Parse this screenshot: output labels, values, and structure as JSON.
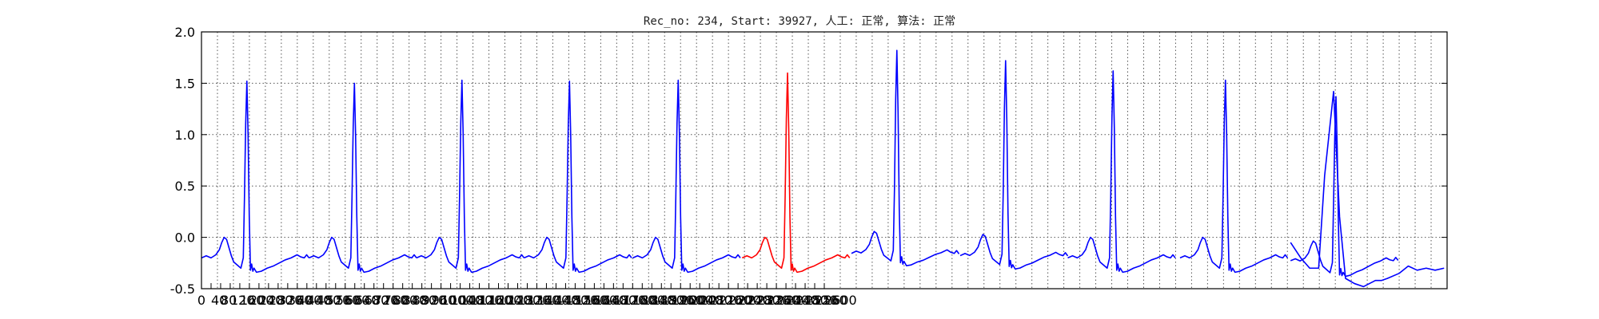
{
  "chart_data": {
    "type": "line",
    "title": "Rec_no: 234, Start: 39927, 人工: 正常, 算法: 正常",
    "xlabel": "",
    "ylabel": "",
    "ylim": [
      -0.5,
      2.0
    ],
    "xlim": [
      0,
      1560
    ],
    "x_grid_step": 20,
    "grid": true,
    "y_ticks": [
      "-0.5",
      "0.0",
      "0.5",
      "1.0",
      "1.5",
      "2.0"
    ],
    "x_tick_labels": [
      "0",
      "40",
      "80",
      "120",
      "160",
      "200",
      "240",
      "280",
      "320",
      "360",
      "400",
      "440",
      "480",
      "520",
      "560",
      "600",
      "640",
      "680",
      "720",
      "760",
      "800",
      "840",
      "880",
      "920",
      "960",
      "1000",
      "1040",
      "1080",
      "1120",
      "1160",
      "1200",
      "1240",
      "1280",
      "1320",
      "1360",
      "1400",
      "1440",
      "1480",
      "1520",
      "1560",
      "1600",
      "1640",
      "1680",
      "1720",
      "1760",
      "1800",
      "1840",
      "1880",
      "1920",
      "1960",
      "2000",
      "2040",
      "2080",
      "2120",
      "2160",
      "2200",
      "2240",
      "2280",
      "2320",
      "2360",
      "2400",
      "2440",
      "2480",
      "2520",
      "2560",
      "2600"
    ],
    "series_colors": {
      "normal": "#0000ff",
      "highlight": "#ff0000"
    },
    "beat": {
      "t": [
        0,
        8,
        16,
        24,
        30,
        34,
        38,
        42,
        46,
        50,
        54,
        60,
        66,
        70,
        72,
        74,
        76,
        78,
        80,
        82,
        84,
        86,
        88,
        92,
        100,
        110,
        120,
        130,
        140,
        150,
        160,
        166,
        172,
        176,
        180
      ],
      "v": [
        -0.2,
        -0.18,
        -0.2,
        -0.17,
        -0.12,
        -0.05,
        0.0,
        -0.02,
        -0.1,
        -0.18,
        -0.24,
        -0.27,
        -0.3,
        -0.2,
        0.4,
        1.1,
        1.52,
        1.0,
        0.2,
        -0.32,
        -0.26,
        -0.33,
        -0.3,
        -0.34,
        -0.33,
        -0.3,
        -0.28,
        -0.25,
        -0.22,
        -0.2,
        -0.17,
        -0.19,
        -0.2,
        -0.17,
        -0.2
      ]
    },
    "beats": [
      {
        "start": 0,
        "peak": 1.52,
        "baseline": 0.0,
        "color": "normal"
      },
      {
        "start": 180,
        "peak": 1.5,
        "baseline": 0.0,
        "color": "normal"
      },
      {
        "start": 360,
        "peak": 1.53,
        "baseline": 0.0,
        "color": "normal"
      },
      {
        "start": 540,
        "peak": 1.52,
        "baseline": 0.0,
        "color": "normal"
      },
      {
        "start": 722,
        "peak": 1.53,
        "baseline": 0.0,
        "color": "normal"
      },
      {
        "start": 905,
        "peak": 1.6,
        "baseline": 0.0,
        "color": "highlight"
      },
      {
        "start": 1088,
        "peak": 1.74,
        "baseline": 0.08,
        "color": "normal"
      },
      {
        "start": 1270,
        "peak": 1.68,
        "baseline": 0.04,
        "color": "normal"
      },
      {
        "start": 1450,
        "peak": 1.62,
        "baseline": 0.0,
        "color": "normal"
      },
      {
        "start": 1638,
        "peak": 1.53,
        "baseline": 0.0,
        "color": "normal"
      },
      {
        "start": 1823,
        "peak": 1.42,
        "baseline": -0.05,
        "color": "normal"
      }
    ],
    "tail": {
      "t": [
        1823,
        1840,
        1855,
        1870,
        1880,
        1895,
        1905,
        1915,
        1930,
        1945,
        1955,
        1965,
        1975,
        1985,
        2005,
        2020,
        2035,
        2050,
        2065,
        2080
      ],
      "v": [
        -0.05,
        -0.2,
        -0.3,
        -0.3,
        0.6,
        1.42,
        0.2,
        -0.4,
        -0.45,
        -0.48,
        -0.45,
        -0.42,
        -0.42,
        -0.4,
        -0.35,
        -0.28,
        -0.32,
        -0.3,
        -0.32,
        -0.3
      ]
    }
  }
}
